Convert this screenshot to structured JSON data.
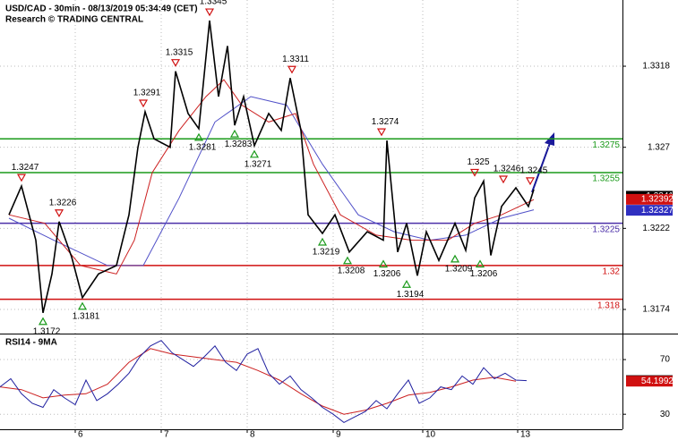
{
  "chart_data": {
    "type": "line",
    "title": "USD/CAD - 30min - 08/13/2019 05:34:49 (CET)",
    "subtitle": "Research © TRADING CENTRAL",
    "xlim": [
      0,
      347.5
    ],
    "xticks": [
      {
        "value": 42,
        "label": "6"
      },
      {
        "value": 90,
        "label": "7"
      },
      {
        "value": 138,
        "label": "8"
      },
      {
        "value": 186,
        "label": "9"
      },
      {
        "value": 236,
        "label": "10"
      },
      {
        "value": 289,
        "label": "13"
      }
    ],
    "ylim": [
      1.31597,
      1.33572
    ],
    "yticks": [
      1.3174,
      1.3222,
      1.327,
      1.3318
    ],
    "grid": true,
    "series": [
      {
        "color": "#000000",
        "x": [
          5,
          12,
          20,
          24,
          29,
          33,
          40,
          46,
          55,
          65,
          72,
          77,
          81,
          86,
          95,
          98,
          105,
          111,
          117,
          122,
          127,
          131,
          136,
          142,
          150,
          157,
          162,
          168,
          172,
          180,
          187,
          195,
          205,
          214,
          216,
          222,
          227,
          233,
          238,
          245,
          254,
          260,
          265,
          270,
          274,
          280,
          288,
          295,
          298
        ],
        "values": [
          1.323,
          1.3247,
          1.3215,
          1.3172,
          1.3195,
          1.3226,
          1.3205,
          1.3181,
          1.3195,
          1.32,
          1.323,
          1.327,
          1.3291,
          1.3275,
          1.327,
          1.3315,
          1.329,
          1.3281,
          1.3345,
          1.33,
          1.333,
          1.3283,
          1.33,
          1.3271,
          1.329,
          1.328,
          1.3311,
          1.328,
          1.323,
          1.3219,
          1.323,
          1.3208,
          1.322,
          1.3215,
          1.3274,
          1.3208,
          1.3225,
          1.3194,
          1.322,
          1.3203,
          1.3225,
          1.3209,
          1.324,
          1.325,
          1.3206,
          1.3235,
          1.3246,
          1.3235,
          1.3245
        ]
      },
      {
        "color": "#cc2020",
        "x": [
          5,
          25,
          45,
          65,
          75,
          85,
          100,
          115,
          125,
          135,
          150,
          165,
          175,
          190,
          210,
          230,
          250,
          265,
          280,
          298
        ],
        "values": [
          1.323,
          1.3225,
          1.32,
          1.3195,
          1.3215,
          1.3255,
          1.328,
          1.33,
          1.331,
          1.3295,
          1.3285,
          1.329,
          1.326,
          1.323,
          1.3218,
          1.3215,
          1.3215,
          1.3225,
          1.323,
          1.3239
        ]
      },
      {
        "color": "#5050c8",
        "x": [
          5,
          30,
          60,
          80,
          100,
          120,
          140,
          160,
          180,
          200,
          220,
          240,
          260,
          280,
          298
        ],
        "values": [
          1.3228,
          1.3215,
          1.32,
          1.32,
          1.324,
          1.3285,
          1.33,
          1.3295,
          1.326,
          1.323,
          1.322,
          1.3215,
          1.3218,
          1.3228,
          1.3233
        ]
      }
    ],
    "levels": [
      {
        "value": 1.3275,
        "color": "#1a9a1a"
      },
      {
        "value": 1.3255,
        "color": "#1a9a1a"
      },
      {
        "value": 1.3225,
        "color": "#4b2fa8"
      },
      {
        "value": 1.32,
        "color": "#d01010"
      },
      {
        "value": 1.318,
        "color": "#d01010"
      }
    ],
    "last_prices": [
      {
        "value": 1.3241,
        "color": "#000000"
      },
      {
        "value": 1.32392,
        "color": "#d01010"
      },
      {
        "value": 1.32327,
        "color": "#3030c0"
      }
    ],
    "annotations": [
      {
        "x": 12,
        "value": 1.3247,
        "dir": "down"
      },
      {
        "x": 33,
        "value": 1.3226,
        "dir": "down"
      },
      {
        "x": 24,
        "value": 1.3172,
        "dir": "up"
      },
      {
        "x": 46,
        "value": 1.3181,
        "dir": "up"
      },
      {
        "x": 80,
        "value": 1.3291,
        "dir": "down"
      },
      {
        "x": 98,
        "value": 1.3315,
        "dir": "down"
      },
      {
        "x": 117,
        "value": 1.3345,
        "dir": "down"
      },
      {
        "x": 111,
        "value": 1.3281,
        "dir": "up"
      },
      {
        "x": 131,
        "value": 1.3283,
        "dir": "up"
      },
      {
        "x": 142,
        "value": 1.3271,
        "dir": "up"
      },
      {
        "x": 163,
        "value": 1.3311,
        "dir": "down"
      },
      {
        "x": 213,
        "value": 1.3274,
        "dir": "down"
      },
      {
        "x": 180,
        "value": 1.3219,
        "dir": "up"
      },
      {
        "x": 194,
        "value": 1.3208,
        "dir": "up"
      },
      {
        "x": 214,
        "value": 1.3206,
        "dir": "up"
      },
      {
        "x": 227,
        "value": 1.3194,
        "dir": "up"
      },
      {
        "x": 254,
        "value": 1.3209,
        "dir": "up"
      },
      {
        "x": 265,
        "value": 1.325,
        "dir": "down"
      },
      {
        "x": 268,
        "value": 1.3206,
        "dir": "up"
      },
      {
        "x": 281,
        "value": 1.3246,
        "dir": "down"
      },
      {
        "x": 296,
        "value": 1.3245,
        "dir": "down"
      }
    ],
    "rsi": {
      "title": "RSI14 - 9MA",
      "ylim": [
        19,
        86.4
      ],
      "yticks": [
        30,
        70
      ],
      "series": [
        {
          "color": "#2020a0",
          "x": [
            0,
            6,
            12,
            18,
            24,
            30,
            36,
            42,
            48,
            54,
            60,
            66,
            72,
            78,
            84,
            90,
            96,
            102,
            108,
            114,
            120,
            126,
            132,
            138,
            144,
            150,
            156,
            162,
            168,
            174,
            180,
            186,
            192,
            198,
            204,
            210,
            216,
            222,
            228,
            234,
            240,
            246,
            252,
            258,
            264,
            270,
            276,
            282,
            288,
            294
          ],
          "values": [
            50,
            56,
            45,
            38,
            35,
            48,
            42,
            37,
            55,
            40,
            45,
            52,
            60,
            72,
            80,
            84,
            75,
            70,
            65,
            72,
            80,
            68,
            62,
            74,
            78,
            60,
            52,
            58,
            48,
            42,
            35,
            30,
            24,
            28,
            32,
            40,
            34,
            45,
            55,
            38,
            42,
            50,
            48,
            58,
            52,
            64,
            56,
            60,
            55,
            54.6
          ]
        },
        {
          "color": "#cc2020",
          "x": [
            0,
            12,
            24,
            36,
            48,
            60,
            72,
            84,
            96,
            108,
            120,
            132,
            144,
            156,
            168,
            180,
            192,
            204,
            216,
            228,
            240,
            252,
            264,
            276,
            288
          ],
          "values": [
            50,
            48,
            42,
            44,
            45,
            52,
            68,
            78,
            74,
            72,
            70,
            68,
            62,
            55,
            45,
            36,
            30,
            33,
            38,
            44,
            46,
            50,
            55,
            57,
            54.2
          ]
        }
      ],
      "last_values": [
        {
          "value": 54.6034,
          "color": "#000000"
        },
        {
          "value": 54.1992,
          "color": "#d01010"
        }
      ]
    }
  }
}
